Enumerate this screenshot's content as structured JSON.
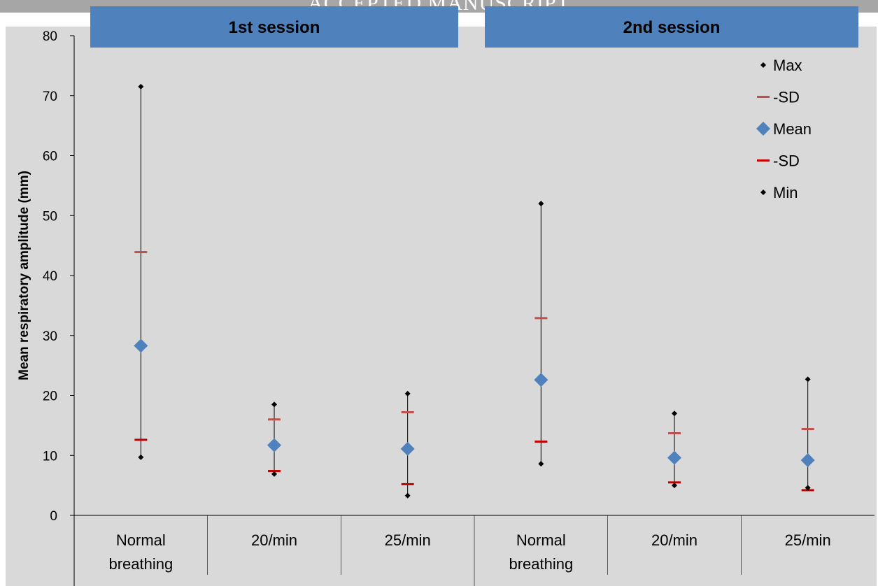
{
  "watermark": "ACCEPTED MANUSCRIPT",
  "chart_data": {
    "type": "scatter",
    "ylabel": "Mean respiratory amplitude (mm)",
    "ylim": [
      0,
      80
    ],
    "yticks": [
      0,
      10,
      20,
      30,
      40,
      50,
      60,
      70,
      80
    ],
    "grid": false,
    "background": "#d9d9d9",
    "sessions": [
      {
        "label": "1st session",
        "color": "#4f81bd"
      },
      {
        "label": "2nd session",
        "color": "#4f81bd"
      }
    ],
    "categories": [
      [
        "Normal",
        "breathing"
      ],
      [
        "20/min"
      ],
      [
        "25/min"
      ],
      [
        "Normal",
        "breathing"
      ],
      [
        "20/min"
      ],
      [
        "25/min"
      ]
    ],
    "legend_position": "top-right",
    "series": [
      {
        "name": "Max",
        "marker": "small-diamond",
        "color": "#000000",
        "values": [
          71.5,
          18.5,
          20.3,
          52.0,
          17.0,
          22.7
        ]
      },
      {
        "name": "-SD",
        "marker": "dash",
        "color": "#c0504d",
        "values": [
          43.9,
          16.0,
          17.2,
          32.9,
          13.7,
          14.4
        ]
      },
      {
        "name": "Mean",
        "marker": "diamond",
        "color": "#4f81bd",
        "values": [
          28.3,
          11.7,
          11.1,
          22.6,
          9.6,
          9.2
        ]
      },
      {
        "name": "-SD",
        "marker": "dash",
        "color": "#c00000",
        "values": [
          12.6,
          7.4,
          5.2,
          12.3,
          5.5,
          4.2
        ]
      },
      {
        "name": "Min",
        "marker": "small-diamond",
        "color": "#000000",
        "values": [
          9.7,
          6.9,
          3.3,
          8.6,
          5.0,
          4.6
        ]
      }
    ]
  }
}
